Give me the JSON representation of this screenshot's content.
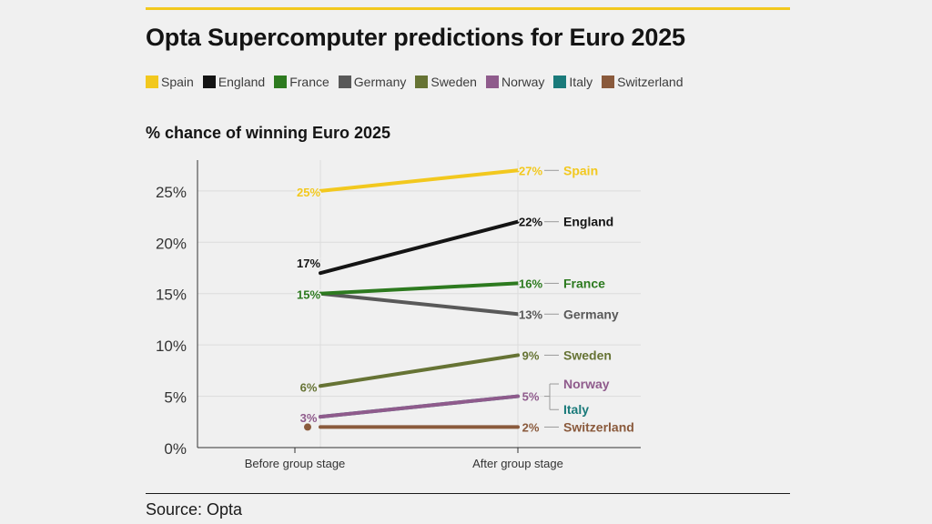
{
  "accent_color": "#f2c81e",
  "title": "Opta Supercomputer predictions for Euro 2025",
  "source": "Source: Opta",
  "chart_data": {
    "type": "line",
    "title": "Opta Supercomputer predictions for Euro 2025",
    "subtitle": "% chance of winning Euro 2025",
    "categories": [
      "Before group stage",
      "After group stage"
    ],
    "ylim": [
      0,
      28
    ],
    "yticks": [
      0,
      5,
      10,
      15,
      20,
      25
    ],
    "ytick_labels": [
      "0%",
      "5%",
      "10%",
      "15%",
      "20%",
      "25%"
    ],
    "grid": true,
    "legend_position": "top",
    "series": [
      {
        "name": "Spain",
        "color": "#f2c81e",
        "values": [
          25,
          27
        ],
        "labels": [
          "25%",
          "27%"
        ],
        "show_start_label": true,
        "show_end_name": true
      },
      {
        "name": "England",
        "color": "#141414",
        "values": [
          17,
          22
        ],
        "labels": [
          "17%",
          "22%"
        ],
        "show_start_label": true,
        "show_end_name": true
      },
      {
        "name": "France",
        "color": "#2d7a1f",
        "values": [
          15,
          16
        ],
        "labels": [
          "15%",
          "16%"
        ],
        "show_start_label": true,
        "show_end_name": true
      },
      {
        "name": "Germany",
        "color": "#595959",
        "values": [
          15,
          13
        ],
        "labels": [
          "",
          "13%"
        ],
        "show_start_label": false,
        "show_end_name": true
      },
      {
        "name": "Sweden",
        "color": "#667334",
        "values": [
          6,
          9
        ],
        "labels": [
          "6%",
          "9%"
        ],
        "show_start_label": true,
        "show_end_name": true
      },
      {
        "name": "Norway",
        "color": "#8f5b8c",
        "values": [
          3,
          5
        ],
        "labels": [
          "3%",
          "5%"
        ],
        "show_start_label": true,
        "show_end_name": true
      },
      {
        "name": "Italy",
        "color": "#1a7a7a",
        "values": [
          3,
          5
        ],
        "labels": [
          "",
          ""
        ],
        "show_start_label": false,
        "show_end_name": true
      },
      {
        "name": "Switzerland",
        "color": "#8a5a3c",
        "values": [
          2,
          2
        ],
        "labels": [
          "",
          "2%"
        ],
        "show_start_label": false,
        "show_end_name": true
      }
    ]
  }
}
